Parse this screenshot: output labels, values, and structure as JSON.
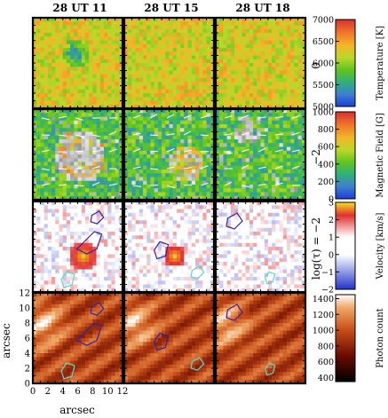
{
  "columns": [
    "28 UT 11",
    "28 UT 15",
    "28 UT 18"
  ],
  "rows": [
    {
      "right_label": "0",
      "colorbar": {
        "label": "Temperature [K]",
        "ticks": [
          "7000",
          "6500",
          "6000",
          "5500",
          "5000"
        ],
        "min": 5000,
        "max": 7000,
        "colormap": "spectral"
      }
    },
    {
      "right_label": "−2",
      "colorbar": {
        "label": "Magnetic Field [G]",
        "ticks": [
          "1000",
          "800",
          "600",
          "400",
          "200",
          "0"
        ],
        "min": 0,
        "max": 1000,
        "colormap": "spectral"
      }
    },
    {
      "right_label": "log(τ) = −2",
      "colorbar": {
        "label": "Velocity [km/s]",
        "ticks": [
          "3",
          "2",
          "1",
          "0",
          "−1",
          "−2"
        ],
        "min": -2,
        "max": 3,
        "colormap": "bwr"
      }
    },
    {
      "right_label": "",
      "colorbar": {
        "label": "Photon count",
        "ticks": [
          "1400",
          "1200",
          "1000",
          "800",
          "600",
          "400"
        ],
        "min": 350,
        "max": 1450,
        "colormap": "heat"
      }
    }
  ],
  "x_axis": {
    "label": "arcsec",
    "ticks": [
      "0",
      "2",
      "4",
      "6",
      "8",
      "10",
      "12"
    ]
  },
  "y_axis": {
    "label": "arcsec",
    "ticks": [
      "0",
      "2",
      "4",
      "6",
      "8",
      "10",
      "12"
    ]
  },
  "colors": {
    "contour_dark": "#3a1fa0",
    "contour_light": "#62d6c8",
    "arrows": "#ffffff"
  }
}
